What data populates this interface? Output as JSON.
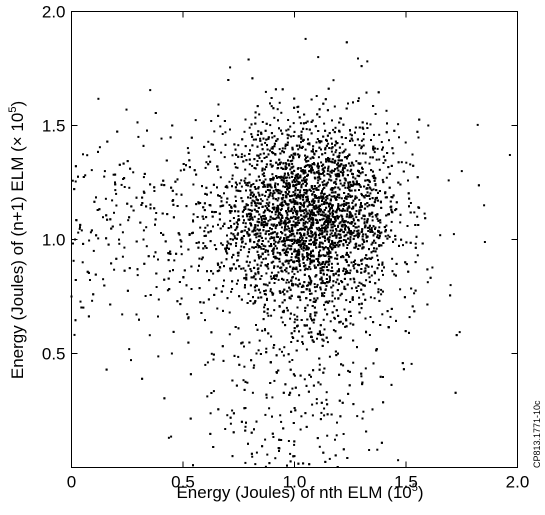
{
  "chart_data": {
    "type": "scatter",
    "title": "",
    "xlabel": "Energy (Joules) of nth ELM",
    "xlabel_unit_base": "10",
    "xlabel_unit_exp": "5",
    "ylabel": "Energy (Joules) of (n+1) ELM",
    "ylabel_unit_prefix": "× 10",
    "ylabel_unit_exp": "5",
    "xlim": [
      0,
      2.0
    ],
    "ylim": [
      0,
      2.0
    ],
    "xticks": [
      0,
      0.5,
      1.0,
      1.5,
      2.0
    ],
    "xtick_labels": [
      "0",
      "0.5",
      "1.0",
      "1.5",
      "2.0"
    ],
    "yticks": [
      0.5,
      1.0,
      1.5,
      2.0
    ],
    "ytick_labels": [
      "0.5",
      "1.0",
      "1.5",
      "2.0"
    ],
    "grid": false,
    "marker_color": "#000000",
    "figure_code": "CP813.1771-10c",
    "distribution": {
      "point_count": 5500,
      "core_center": [
        1.06,
        1.1
      ],
      "core_spread": [
        0.2,
        0.2
      ],
      "note": "dense central cluster with sparse points extending toward x=0 near y=1.0 and downward below y=0.5"
    },
    "series": [
      {
        "name": "",
        "x": [
          1.0,
          1.05,
          1.1,
          0.95,
          1.2,
          0.9,
          1.15,
          1.25,
          0.85,
          1.3,
          0.8,
          1.35,
          0.1,
          0.05,
          0.2,
          0.3,
          0.0,
          0.15,
          0.45,
          0.6,
          1.6,
          1.55,
          1.7,
          1.75,
          1.85,
          1.05,
          1.0,
          0.72,
          0.78,
          1.1,
          1.3,
          1.15,
          0.94
        ],
        "y": [
          1.0,
          1.1,
          1.05,
          1.15,
          1.1,
          0.95,
          1.25,
          1.0,
          1.1,
          1.2,
          0.9,
          1.1,
          0.95,
          0.9,
          1.2,
          1.45,
          0.75,
          1.3,
          0.5,
          0.45,
          1.5,
          1.1,
          0.8,
          1.3,
          1.15,
          1.88,
          0.05,
          0.25,
          0.02,
          0.3,
          0.4,
          0.55,
          0.2
        ]
      }
    ]
  }
}
